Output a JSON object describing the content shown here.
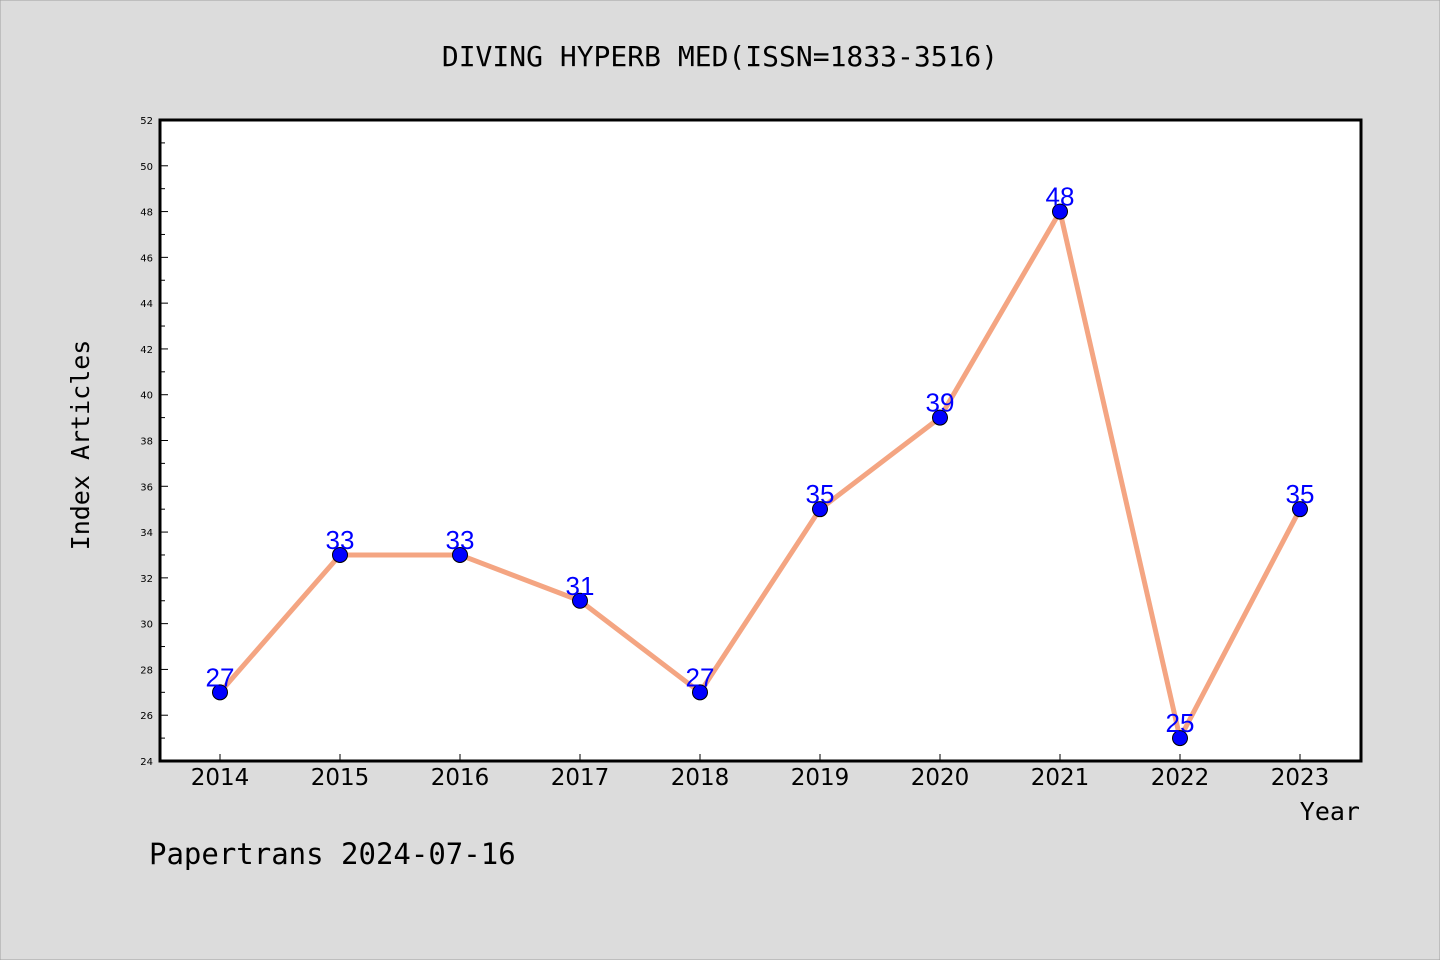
{
  "chart_data": {
    "type": "line",
    "title": "DIVING HYPERB MED(ISSN=1833-3516)",
    "xlabel": "Year",
    "ylabel": "Index Articles",
    "categories": [
      "2014",
      "2015",
      "2016",
      "2017",
      "2018",
      "2019",
      "2020",
      "2021",
      "2022",
      "2023"
    ],
    "values": [
      27,
      33,
      33,
      31,
      27,
      35,
      39,
      48,
      25,
      35
    ],
    "ylim": [
      24,
      52
    ],
    "yticks": [
      "24",
      "26",
      "28",
      "30",
      "32",
      "34",
      "36",
      "38",
      "40",
      "42",
      "44",
      "46",
      "48",
      "50",
      "52"
    ],
    "grid": false,
    "line_color": "#f4a582",
    "marker_color": "#0000ff",
    "label_color": "#0000ff",
    "background_color": "#dcdcdc",
    "plot_background_color": "#ffffff"
  },
  "footer": {
    "text": "Papertrans 2024-07-16"
  }
}
